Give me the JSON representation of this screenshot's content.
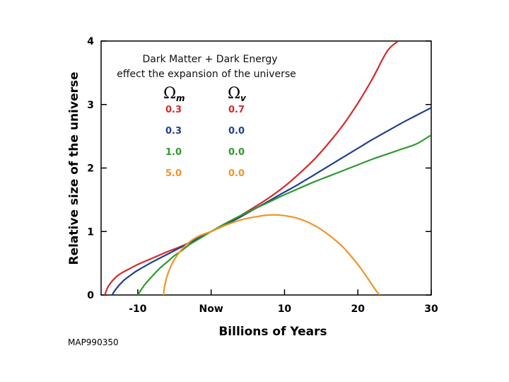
{
  "chart_data": {
    "type": "line",
    "xlabel": "Billions of Years",
    "ylabel": "Relative size of the universe",
    "xlim": [
      -15,
      30
    ],
    "ylim": [
      0,
      4
    ],
    "x_ticks": [
      {
        "value": -10,
        "label": "-10"
      },
      {
        "value": 0,
        "label": "Now"
      },
      {
        "value": 10,
        "label": "10"
      },
      {
        "value": 20,
        "label": "20"
      },
      {
        "value": 30,
        "label": "30"
      }
    ],
    "y_ticks": [
      {
        "value": 0,
        "label": "0"
      },
      {
        "value": 1,
        "label": "1"
      },
      {
        "value": 2,
        "label": "2"
      },
      {
        "value": 3,
        "label": "3"
      },
      {
        "value": 4,
        "label": "4"
      }
    ],
    "grid": false,
    "annotation": [
      "Dark Matter + Dark Energy",
      "effect the expansion of the universe"
    ],
    "legend_header": {
      "omega_symbol": "Ω",
      "col1_sub": "m",
      "col2_sub": "v"
    },
    "series": [
      {
        "omega_m": "0.3",
        "omega_v": "0.7",
        "color": "#d42a2a",
        "x": [
          -14.5,
          -14,
          -13,
          -12,
          -11,
          -10,
          -8,
          -6,
          -4,
          -2,
          0,
          2,
          4,
          6,
          8,
          10,
          12,
          14,
          16,
          18,
          20,
          22,
          24,
          25.5
        ],
        "y": [
          0,
          0.14,
          0.28,
          0.36,
          0.42,
          0.48,
          0.58,
          0.68,
          0.77,
          0.88,
          1.0,
          1.12,
          1.25,
          1.39,
          1.54,
          1.71,
          1.91,
          2.13,
          2.39,
          2.68,
          3.02,
          3.41,
          3.84,
          4.0
        ]
      },
      {
        "omega_m": "0.3",
        "omega_v": "0.0",
        "color": "#1f3f8f",
        "x": [
          -13.5,
          -13,
          -12,
          -11,
          -10,
          -8,
          -6,
          -4,
          -2,
          0,
          2,
          4,
          6,
          8,
          10,
          12,
          14,
          16,
          18,
          20,
          22,
          24,
          26,
          28,
          30
        ],
        "y": [
          0,
          0.09,
          0.22,
          0.31,
          0.39,
          0.52,
          0.64,
          0.76,
          0.88,
          1.0,
          1.11,
          1.23,
          1.36,
          1.49,
          1.62,
          1.75,
          1.89,
          2.03,
          2.17,
          2.31,
          2.45,
          2.58,
          2.71,
          2.83,
          2.95
        ]
      },
      {
        "omega_m": "1.0",
        "omega_v": "0.0",
        "color": "#2e9a2e",
        "x": [
          -10,
          -9.5,
          -9,
          -8,
          -7,
          -6,
          -5,
          -4,
          -3,
          -2,
          -1,
          0,
          2,
          4,
          6,
          8,
          10,
          12,
          14,
          16,
          18,
          20,
          22,
          24,
          26,
          28,
          30
        ],
        "y": [
          0,
          0.09,
          0.17,
          0.3,
          0.42,
          0.52,
          0.62,
          0.7,
          0.79,
          0.86,
          0.93,
          1.0,
          1.13,
          1.25,
          1.36,
          1.47,
          1.58,
          1.68,
          1.78,
          1.87,
          1.96,
          2.05,
          2.14,
          2.22,
          2.3,
          2.38,
          2.52
        ]
      },
      {
        "omega_m": "5.0",
        "omega_v": "0.0",
        "color": "#f0952a",
        "x": [
          -6.5,
          -6.3,
          -6,
          -5.5,
          -5,
          -4,
          -3,
          -2,
          -1,
          0,
          1,
          2,
          4,
          6,
          8,
          10,
          12,
          14,
          16,
          18,
          20,
          21,
          22,
          22.6,
          23
        ],
        "y": [
          0,
          0.16,
          0.3,
          0.45,
          0.56,
          0.72,
          0.83,
          0.91,
          0.96,
          1.0,
          1.05,
          1.1,
          1.18,
          1.23,
          1.26,
          1.25,
          1.2,
          1.1,
          0.95,
          0.75,
          0.48,
          0.32,
          0.15,
          0.05,
          0
        ]
      }
    ]
  },
  "credit": "MAP990350"
}
